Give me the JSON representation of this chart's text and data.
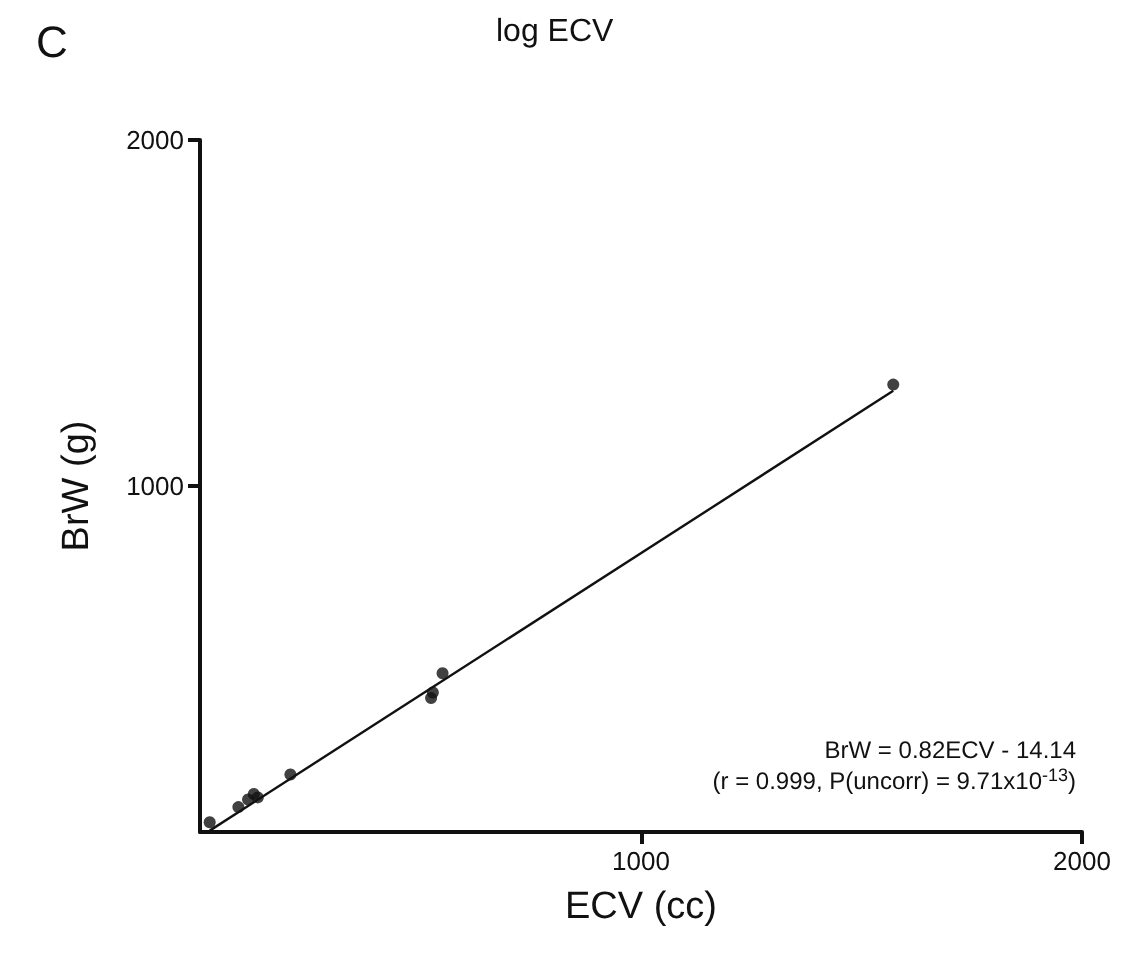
{
  "chart_data": {
    "type": "scatter",
    "xlabel": "ECV (cc)",
    "ylabel": "BrW (g)",
    "annotations": [
      "C",
      "log ECV",
      "BrW = 0.82ECV - 14.14",
      "(r = 0.999, P(uncorr) = 9.71x10$^{-13}$)"
    ],
    "series": [
      {
        "color": "#111111",
        "x": [
          22,
          87,
          109,
          122,
          131,
          205,
          524,
          528,
          550,
          1572
        ],
        "values": [
          28,
          72,
          94,
          110,
          100,
          166,
          387,
          403,
          459,
          1293
        ]
      },
      {
        "type": "line",
        "color": "#111111",
        "x": [
          22,
          1572
        ],
        "values": [
          4,
          1275
        ],
        "marker": "none"
      }
    ],
    "xlim": [
      0,
      2000
    ],
    "ylim": [
      0,
      2000
    ],
    "xticks": [
      1000,
      2000
    ],
    "yticks": [
      1000,
      2000
    ],
    "grid": false,
    "marker": "circle",
    "line_style": "solid"
  }
}
